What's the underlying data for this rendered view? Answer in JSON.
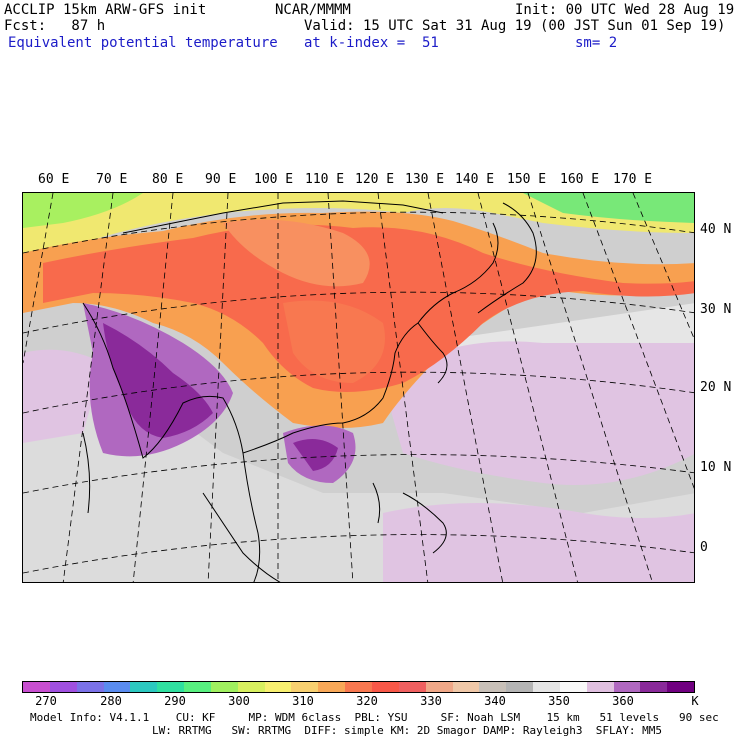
{
  "header": {
    "model": "ACCLIP 15km ARW-GFS init",
    "forecast": "Fcst:   87 h",
    "field": "Equivalent potential temperature",
    "center": "NCAR/MMMM",
    "init": "Init: 00 UTC Wed 28 Aug 19",
    "valid": "Valid: 15 UTC Sat 31 Aug 19 (00 JST Sun 01 Sep 19)",
    "level": "at k-index =  51",
    "smoothing": "sm= 2"
  },
  "map": {
    "lon_labels": [
      "60 E",
      "70 E",
      "80 E",
      "90 E",
      "100 E",
      "110 E",
      "120 E",
      "130 E",
      "140 E",
      "150 E",
      "160 E",
      "170 E"
    ],
    "lat_labels": [
      "40 N",
      "30 N",
      "20 N",
      "10 N",
      "0"
    ]
  },
  "colorbar": {
    "unit": "K",
    "ticks": [
      "270",
      "280",
      "290",
      "300",
      "310",
      "320",
      "330",
      "340",
      "350",
      "360"
    ],
    "colors": [
      "#c84fd0",
      "#a050e0",
      "#7b72e8",
      "#5a8cf0",
      "#2cc8c0",
      "#30e0a0",
      "#58f080",
      "#a0f060",
      "#d8f060",
      "#f8f070",
      "#f8d070",
      "#f8a858",
      "#f87850",
      "#f85848",
      "#f06060",
      "#f0a888",
      "#f0c8a8",
      "#c8c0b8",
      "#b4b4b4",
      "#e4e4e4",
      "#f8f8f8",
      "#e0c0e0",
      "#b068c0",
      "#8a2a9a",
      "#700080"
    ]
  },
  "footer": {
    "line1": "Model Info: V4.1.1    CU: KF     MP: WDM 6class  PBL: YSU     SF: Noah LSM    15 km   51 levels   90 sec",
    "line2": "LW: RRTMG   SW: RRTMG  DIFF: simple KM: 2D Smagor DAMP: Rayleigh3  SFLAY: MM5"
  }
}
